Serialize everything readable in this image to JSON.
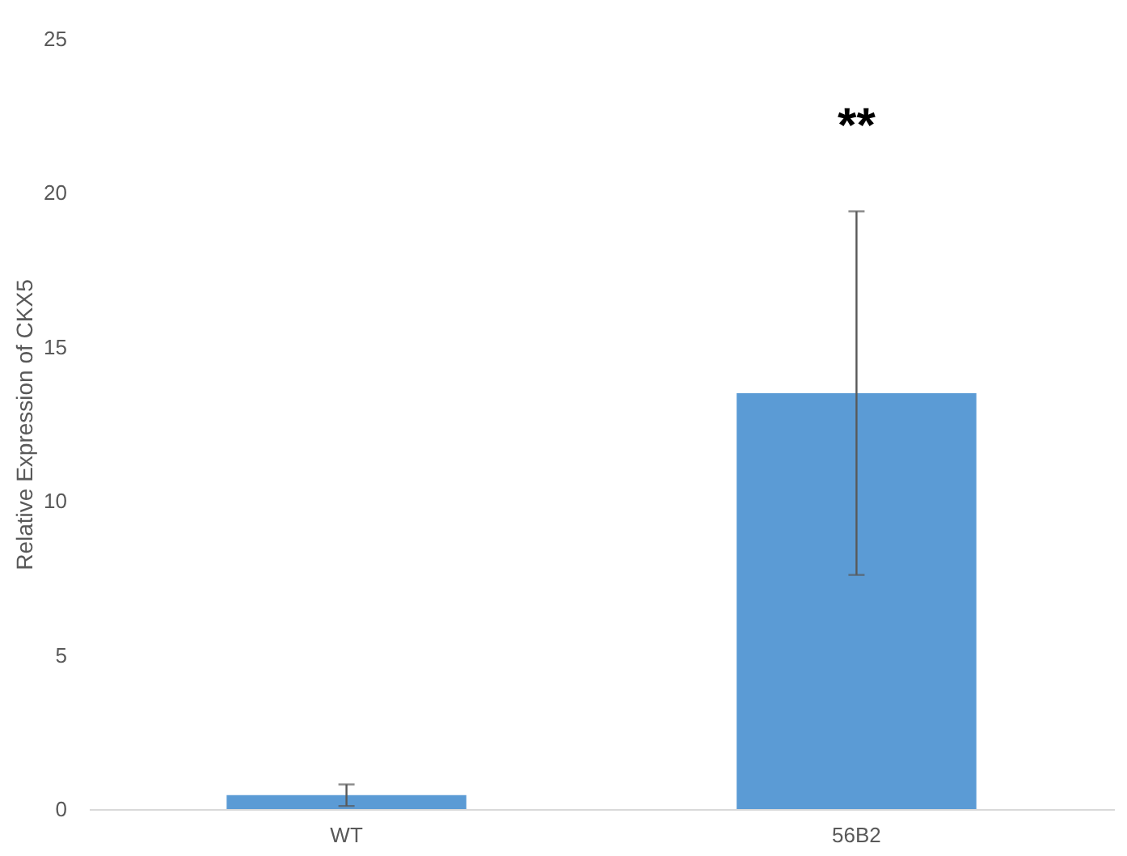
{
  "chart_data": {
    "type": "bar",
    "ylabel": "Relative Expression of CKX5",
    "categories": [
      "WT",
      "56B2"
    ],
    "values": [
      0.45,
      13.5
    ],
    "errors": [
      0.35,
      5.9
    ],
    "color": "#5b9bd5",
    "ylim": [
      0,
      25
    ],
    "yticks": [
      0,
      5,
      10,
      15,
      20,
      25
    ],
    "grid": false,
    "annotations": [
      "**"
    ]
  }
}
